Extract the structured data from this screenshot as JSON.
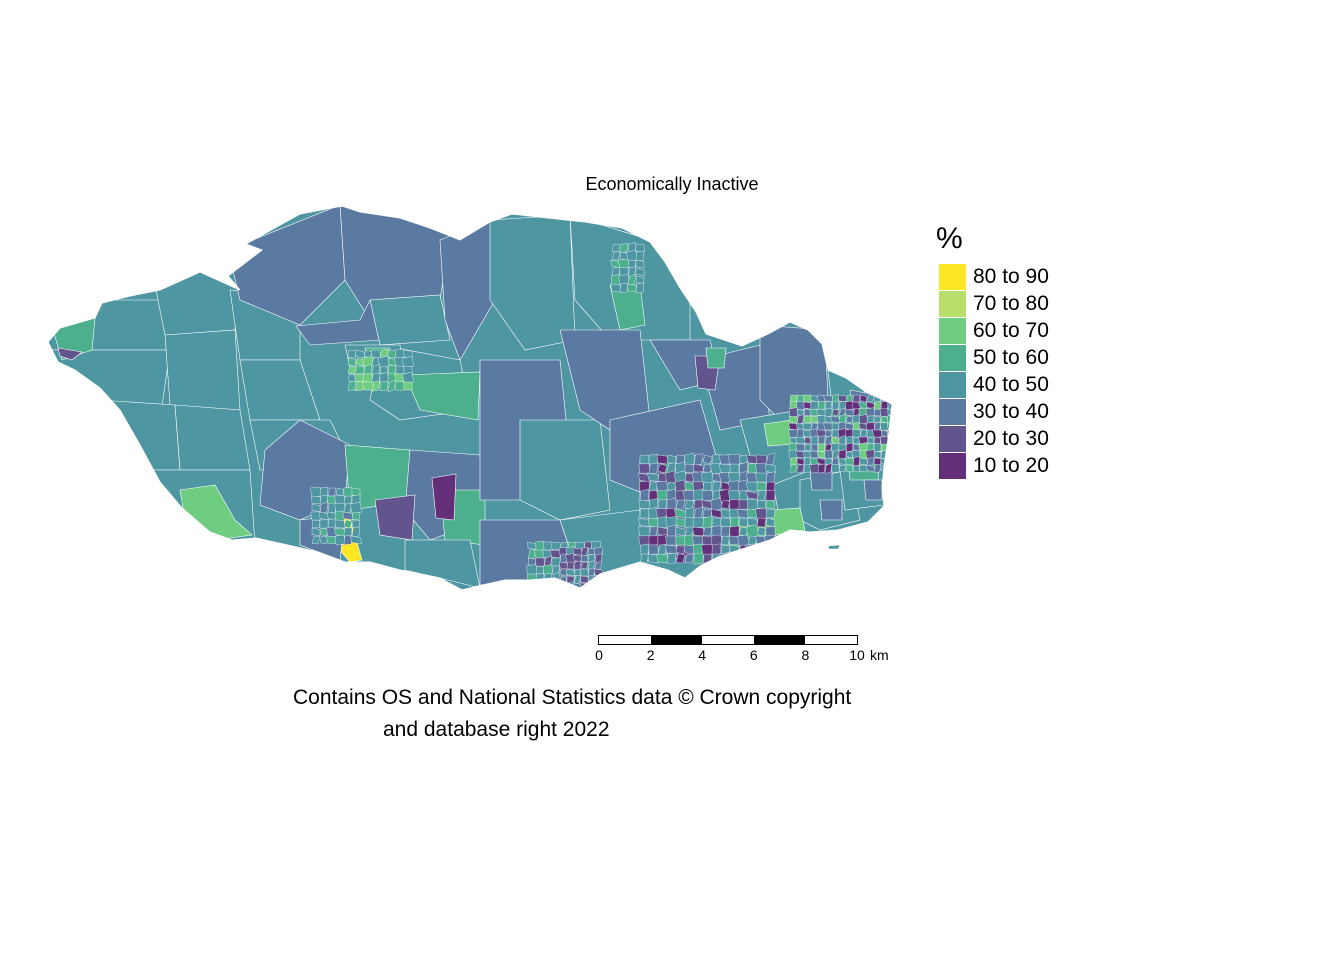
{
  "map": {
    "title": "Economically Inactive",
    "region_outline_color": "#ffffff"
  },
  "legend": {
    "title": "%",
    "items": [
      {
        "label": "80 to 90",
        "color": "#fde725"
      },
      {
        "label": "70 to 80",
        "color": "#b8de6b"
      },
      {
        "label": "60 to 70",
        "color": "#6ecd80"
      },
      {
        "label": "50 to 60",
        "color": "#4caf8e"
      },
      {
        "label": "40 to 50",
        "color": "#4f96a3"
      },
      {
        "label": "30 to 40",
        "color": "#5a7aa2"
      },
      {
        "label": "20 to 30",
        "color": "#62548d"
      },
      {
        "label": "10 to 20",
        "color": "#632f78"
      }
    ]
  },
  "scalebar": {
    "ticks": [
      "0",
      "2",
      "4",
      "6",
      "8",
      "10"
    ],
    "unit": "km"
  },
  "credits": {
    "line1": "Contains OS and National Statistics data © Crown copyright",
    "line2": "and database right 2022"
  }
}
